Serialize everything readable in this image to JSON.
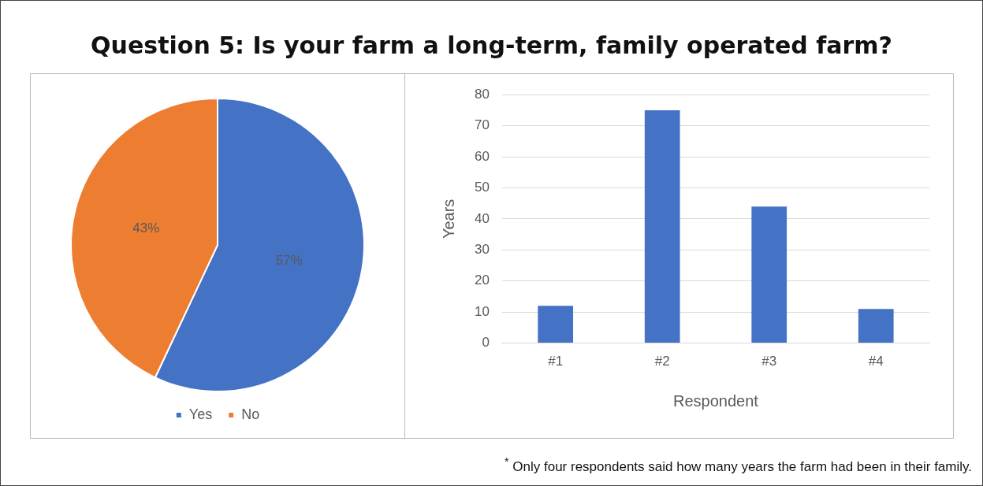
{
  "chart_data": [
    {
      "type": "pie",
      "title": "Question 5: Is your farm a long-term, family operated farm?",
      "categories": [
        "Yes",
        "No"
      ],
      "values": [
        57,
        43
      ],
      "colors": [
        "#4472c4",
        "#ed7d31"
      ],
      "value_labels": [
        "57%",
        "43%"
      ],
      "legend": "bottom"
    },
    {
      "type": "bar",
      "categories": [
        "#1",
        "#2",
        "#3",
        "#4"
      ],
      "values": [
        12,
        75,
        44,
        11
      ],
      "color": "#4472c4",
      "xlabel": "Respondent",
      "ylabel": "Years",
      "ylim": [
        0,
        80
      ],
      "yticks": [
        0,
        10,
        20,
        30,
        40,
        50,
        60,
        70,
        80
      ],
      "grid": "y",
      "legend": false,
      "annotations": [
        "$^{*}$ Only four respondents said how many years the farm had been in their family."
      ]
    }
  ]
}
